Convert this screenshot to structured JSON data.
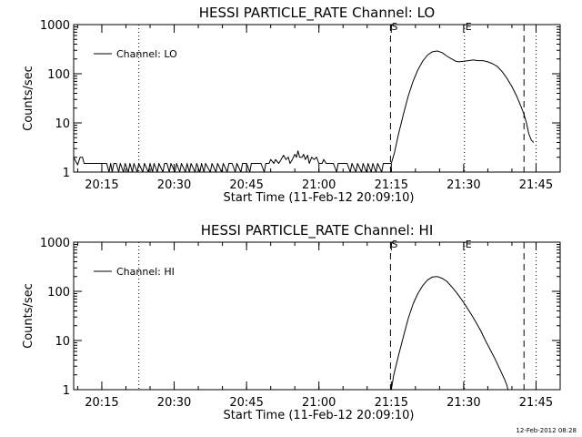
{
  "footer_timestamp": "12-Feb-2012 08:28",
  "chart_data": [
    {
      "type": "line",
      "title": "HESSI PARTICLE_RATE Channel: LO",
      "xlabel": "Start Time (11-Feb-12 20:09:10)",
      "ylabel": "Counts/sec",
      "y_scale": "log",
      "ylim": [
        1,
        1000
      ],
      "xlim": [
        "20:09:10",
        "21:50:00"
      ],
      "x_tick_labels": [
        "20:15",
        "20:30",
        "20:45",
        "21:00",
        "21:15",
        "21:30",
        "21:45"
      ],
      "y_tick_labels": [
        "1",
        "10",
        "100",
        "1000"
      ],
      "legend": {
        "label": "Channel: LO",
        "position": "top-left"
      },
      "markers": [
        {
          "time": "20:22:40",
          "style": "dotted",
          "label": ""
        },
        {
          "time": "21:14:50",
          "style": "dashed",
          "label": "S"
        },
        {
          "time": "21:30:10",
          "style": "dotted",
          "label": "E"
        },
        {
          "time": "21:42:30",
          "style": "dashed",
          "label": ""
        },
        {
          "time": "21:45:00",
          "style": "dotted",
          "label": ""
        }
      ],
      "series": [
        {
          "name": "Channel: LO",
          "points": [
            [
              "20:09:10",
              2.0
            ],
            [
              "20:10:00",
              1.4
            ],
            [
              "20:10:30",
              2.0
            ],
            [
              "20:11:00",
              2.0
            ],
            [
              "20:11:20",
              1.5
            ],
            [
              "20:11:40",
              1.5
            ],
            [
              "20:12:00",
              1.5
            ],
            [
              "20:12:30",
              1.5
            ],
            [
              "20:13:00",
              1.5
            ],
            [
              "20:14:00",
              1.5
            ],
            [
              "20:15:00",
              1.5
            ],
            [
              "20:16:00",
              1.5
            ],
            [
              "20:16:30",
              1.0
            ],
            [
              "20:16:50",
              1.5
            ],
            [
              "20:17:10",
              1.0
            ],
            [
              "20:17:30",
              1.5
            ],
            [
              "20:18:00",
              1.5
            ],
            [
              "20:18:30",
              1.0
            ],
            [
              "20:18:50",
              1.5
            ],
            [
              "20:19:30",
              1.0
            ],
            [
              "20:19:50",
              1.5
            ],
            [
              "20:20:30",
              1.0
            ],
            [
              "20:20:50",
              1.5
            ],
            [
              "20:21:20",
              1.0
            ],
            [
              "20:21:40",
              1.5
            ],
            [
              "20:22:20",
              1.0
            ],
            [
              "20:22:40",
              1.5
            ],
            [
              "20:23:30",
              1.0
            ],
            [
              "20:23:50",
              1.5
            ],
            [
              "20:24:40",
              1.0
            ],
            [
              "20:25:00",
              1.5
            ],
            [
              "20:25:30",
              1.0
            ],
            [
              "20:25:50",
              1.5
            ],
            [
              "20:26:30",
              1.0
            ],
            [
              "20:26:50",
              1.5
            ],
            [
              "20:27:40",
              1.0
            ],
            [
              "20:28:00",
              1.5
            ],
            [
              "20:28:30",
              1.5
            ],
            [
              "20:29:00",
              1.0
            ],
            [
              "20:29:20",
              1.5
            ],
            [
              "20:30:10",
              1.0
            ],
            [
              "20:30:30",
              1.5
            ],
            [
              "20:31:10",
              1.0
            ],
            [
              "20:31:30",
              1.5
            ],
            [
              "20:32:20",
              1.0
            ],
            [
              "20:32:40",
              1.5
            ],
            [
              "20:33:10",
              1.0
            ],
            [
              "20:33:30",
              1.5
            ],
            [
              "20:34:20",
              1.0
            ],
            [
              "20:34:40",
              1.5
            ],
            [
              "20:35:20",
              1.0
            ],
            [
              "20:35:40",
              1.5
            ],
            [
              "20:36:10",
              1.0
            ],
            [
              "20:36:30",
              1.5
            ],
            [
              "20:37:30",
              1.0
            ],
            [
              "20:37:50",
              1.5
            ],
            [
              "20:38:40",
              1.0
            ],
            [
              "20:39:00",
              1.5
            ],
            [
              "20:39:50",
              1.0
            ],
            [
              "20:40:10",
              1.5
            ],
            [
              "20:41:00",
              1.0
            ],
            [
              "20:41:20",
              1.5
            ],
            [
              "20:42:00",
              1.5
            ],
            [
              "20:42:40",
              1.0
            ],
            [
              "20:43:00",
              1.5
            ],
            [
              "20:43:50",
              1.0
            ],
            [
              "20:44:10",
              1.5
            ],
            [
              "20:45:00",
              1.5
            ],
            [
              "20:45:40",
              1.0
            ],
            [
              "20:46:00",
              1.5
            ],
            [
              "20:47:00",
              1.5
            ],
            [
              "20:48:00",
              1.5
            ],
            [
              "20:48:40",
              1.0
            ],
            [
              "20:49:00",
              1.5
            ],
            [
              "20:49:40",
              1.5
            ],
            [
              "20:50:00",
              1.8
            ],
            [
              "20:50:40",
              1.5
            ],
            [
              "20:51:00",
              1.8
            ],
            [
              "20:51:40",
              1.5
            ],
            [
              "20:52:10",
              1.8
            ],
            [
              "20:52:40",
              2.2
            ],
            [
              "20:53:10",
              1.8
            ],
            [
              "20:53:40",
              2.0
            ],
            [
              "20:54:00",
              1.5
            ],
            [
              "20:54:30",
              1.8
            ],
            [
              "20:55:00",
              2.3
            ],
            [
              "20:55:20",
              2.0
            ],
            [
              "20:55:40",
              2.7
            ],
            [
              "20:56:00",
              2.0
            ],
            [
              "20:56:30",
              2.0
            ],
            [
              "20:56:50",
              2.3
            ],
            [
              "20:57:10",
              1.8
            ],
            [
              "20:57:40",
              2.2
            ],
            [
              "20:58:00",
              1.5
            ],
            [
              "20:58:30",
              2.0
            ],
            [
              "20:59:00",
              1.8
            ],
            [
              "20:59:30",
              2.0
            ],
            [
              "21:00:00",
              1.5
            ],
            [
              "21:00:40",
              1.5
            ],
            [
              "21:01:00",
              1.8
            ],
            [
              "21:01:30",
              1.5
            ],
            [
              "21:02:00",
              1.5
            ],
            [
              "21:03:00",
              1.5
            ],
            [
              "21:03:40",
              1.0
            ],
            [
              "21:04:00",
              1.5
            ],
            [
              "21:05:00",
              1.5
            ],
            [
              "21:05:50",
              1.5
            ],
            [
              "21:06:30",
              1.0
            ],
            [
              "21:06:50",
              1.5
            ],
            [
              "21:07:40",
              1.0
            ],
            [
              "21:08:00",
              1.5
            ],
            [
              "21:08:50",
              1.0
            ],
            [
              "21:09:10",
              1.5
            ],
            [
              "21:09:50",
              1.0
            ],
            [
              "21:10:10",
              1.5
            ],
            [
              "21:10:50",
              1.0
            ],
            [
              "21:11:10",
              1.5
            ],
            [
              "21:11:50",
              1.0
            ],
            [
              "21:12:10",
              1.5
            ],
            [
              "21:13:00",
              1.0
            ],
            [
              "21:13:20",
              1.5
            ],
            [
              "21:14:00",
              1.5
            ],
            [
              "21:15:00",
              1.5
            ],
            [
              "21:15:40",
              2.5
            ],
            [
              "21:16:30",
              6
            ],
            [
              "21:17:30",
              15
            ],
            [
              "21:18:30",
              35
            ],
            [
              "21:19:30",
              70
            ],
            [
              "21:20:30",
              120
            ],
            [
              "21:21:30",
              180
            ],
            [
              "21:22:30",
              240
            ],
            [
              "21:23:30",
              280
            ],
            [
              "21:24:30",
              290
            ],
            [
              "21:25:30",
              270
            ],
            [
              "21:26:30",
              230
            ],
            [
              "21:27:30",
              200
            ],
            [
              "21:28:20",
              180
            ],
            [
              "21:29:00",
              175
            ],
            [
              "21:30:00",
              180
            ],
            [
              "21:31:00",
              185
            ],
            [
              "21:32:00",
              190
            ],
            [
              "21:33:00",
              185
            ],
            [
              "21:34:00",
              185
            ],
            [
              "21:35:00",
              175
            ],
            [
              "21:36:00",
              160
            ],
            [
              "21:37:00",
              140
            ],
            [
              "21:38:00",
              110
            ],
            [
              "21:39:00",
              80
            ],
            [
              "21:40:00",
              55
            ],
            [
              "21:41:00",
              35
            ],
            [
              "21:42:00",
              20
            ],
            [
              "21:42:30",
              15
            ],
            [
              "21:43:00",
              10
            ],
            [
              "21:43:30",
              6
            ],
            [
              "21:44:00",
              4.5
            ],
            [
              "21:44:30",
              4.0
            ]
          ]
        }
      ]
    },
    {
      "type": "line",
      "title": "HESSI PARTICLE_RATE Channel: HI",
      "xlabel": "Start Time (11-Feb-12 20:09:10)",
      "ylabel": "Counts/sec",
      "y_scale": "log",
      "ylim": [
        1,
        1000
      ],
      "xlim": [
        "20:09:10",
        "21:50:00"
      ],
      "x_tick_labels": [
        "20:15",
        "20:30",
        "20:45",
        "21:00",
        "21:15",
        "21:30",
        "21:45"
      ],
      "y_tick_labels": [
        "1",
        "10",
        "100",
        "1000"
      ],
      "legend": {
        "label": "Channel: HI",
        "position": "top-left"
      },
      "markers": [
        {
          "time": "20:22:40",
          "style": "dotted",
          "label": ""
        },
        {
          "time": "21:14:50",
          "style": "dashed",
          "label": "S"
        },
        {
          "time": "21:30:10",
          "style": "dotted",
          "label": "E"
        },
        {
          "time": "21:42:30",
          "style": "dashed",
          "label": ""
        },
        {
          "time": "21:45:00",
          "style": "dotted",
          "label": ""
        }
      ],
      "series": [
        {
          "name": "Channel: HI",
          "points": [
            [
              "21:15:00",
              1.0
            ],
            [
              "21:15:30",
              2.0
            ],
            [
              "21:16:30",
              5
            ],
            [
              "21:17:30",
              12
            ],
            [
              "21:18:30",
              28
            ],
            [
              "21:19:30",
              55
            ],
            [
              "21:20:30",
              90
            ],
            [
              "21:21:30",
              130
            ],
            [
              "21:22:30",
              170
            ],
            [
              "21:23:30",
              195
            ],
            [
              "21:24:30",
              200
            ],
            [
              "21:25:30",
              185
            ],
            [
              "21:26:30",
              160
            ],
            [
              "21:27:30",
              125
            ],
            [
              "21:28:30",
              95
            ],
            [
              "21:29:30",
              70
            ],
            [
              "21:30:30",
              50
            ],
            [
              "21:31:30",
              35
            ],
            [
              "21:32:30",
              24
            ],
            [
              "21:33:30",
              16
            ],
            [
              "21:34:30",
              10
            ],
            [
              "21:35:30",
              6.5
            ],
            [
              "21:36:30",
              4.2
            ],
            [
              "21:37:30",
              2.6
            ],
            [
              "21:38:30",
              1.6
            ],
            [
              "21:39:00",
              1.2
            ],
            [
              "21:39:10",
              1.0
            ]
          ]
        }
      ]
    }
  ]
}
